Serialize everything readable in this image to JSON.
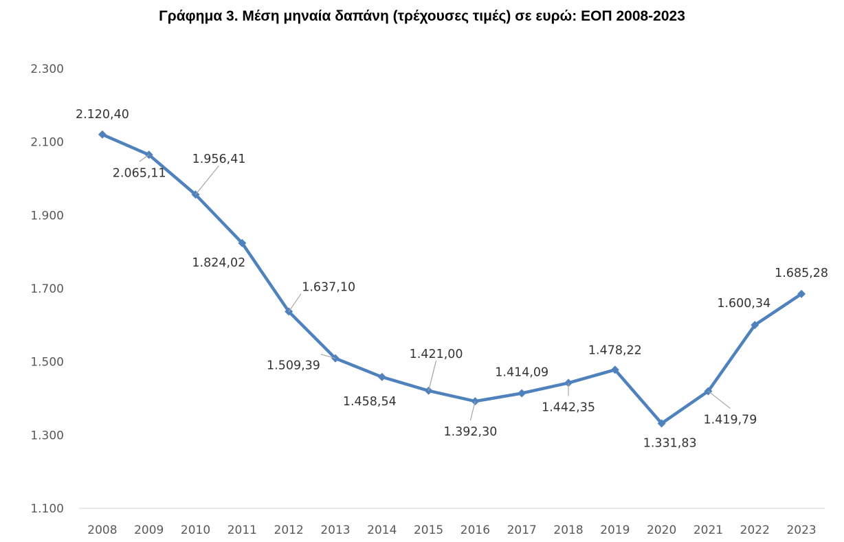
{
  "chart_data": {
    "type": "line",
    "title": "Γράφημα 3. Μέση μηναία δαπάνη (τρέχουσες τιμές) σε ευρώ: ΕΟΠ 2008-2023",
    "xlabel": "",
    "ylabel": "",
    "categories": [
      "2008",
      "2009",
      "2010",
      "2011",
      "2012",
      "2013",
      "2014",
      "2015",
      "2016",
      "2017",
      "2018",
      "2019",
      "2020",
      "2021",
      "2022",
      "2023"
    ],
    "series": [
      {
        "values": [
          2120.4,
          2065.11,
          1956.41,
          1824.02,
          1637.1,
          1509.39,
          1458.54,
          1421.0,
          1392.3,
          1414.09,
          1442.35,
          1478.22,
          1331.83,
          1419.79,
          1600.34,
          1685.28
        ],
        "labels": [
          "2.120,40",
          "2.065,11",
          "1.956,41",
          "1.824,02",
          "1.637,10",
          "1.509,39",
          "1.458,54",
          "1.421,00",
          "1.392,30",
          "1.414,09",
          "1.442,35",
          "1.478,22",
          "1.331,83",
          "1.419,79",
          "1.600,34",
          "1.685,28"
        ]
      }
    ],
    "yticks": [
      1100,
      1300,
      1500,
      1700,
      1900,
      2100,
      2300
    ],
    "ytick_labels": [
      "1.100",
      "1.300",
      "1.500",
      "1.700",
      "1.900",
      "2.100",
      "2.300"
    ],
    "ylim": [
      1100,
      2300
    ],
    "grid": false,
    "legend": "none",
    "colors": {
      "line": "#4F81BD",
      "axis": "#D9D9D9",
      "leader": "#A6A6A6"
    }
  }
}
